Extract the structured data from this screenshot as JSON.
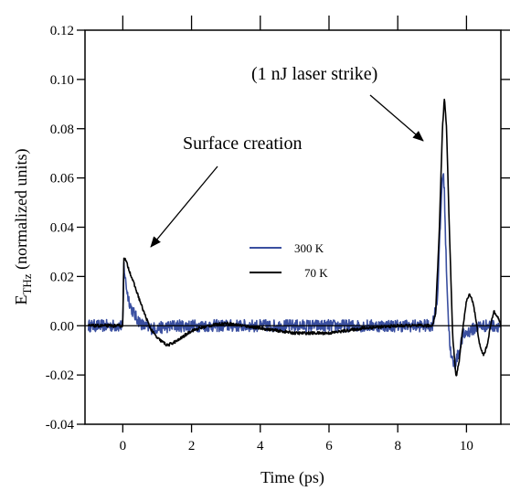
{
  "chart_data": {
    "type": "line",
    "title": "",
    "xlabel": "Time (ps)",
    "ylabel_main": "E",
    "ylabel_sub": "THz",
    "ylabel_rest": " (normalized units)",
    "xlim": [
      -1.1,
      11.0
    ],
    "ylim": [
      -0.04,
      0.12
    ],
    "x_ticks": [
      0,
      2,
      4,
      6,
      8,
      10
    ],
    "x_tick_labels": [
      "0",
      "2",
      "4",
      "6",
      "8",
      "10"
    ],
    "y_ticks": [
      -0.04,
      -0.02,
      0.0,
      0.02,
      0.04,
      0.06,
      0.08,
      0.1,
      0.12
    ],
    "y_tick_labels": [
      "-0.04",
      "-0.02",
      "0.00",
      "0.02",
      "0.04",
      "0.06",
      "0.08",
      "0.10",
      "0.12"
    ],
    "grid": false,
    "legend_position": "center",
    "series": [
      {
        "name": "300 K",
        "color": "#3a4fa0",
        "x": [
          -1.0,
          -0.5,
          0.0,
          0.03,
          0.08,
          0.15,
          0.25,
          0.4,
          0.6,
          0.8,
          1.0,
          1.5,
          2.0,
          3.0,
          4.0,
          5.0,
          6.0,
          7.0,
          8.0,
          9.0,
          9.15,
          9.25,
          9.3,
          9.35,
          9.4,
          9.48,
          9.55,
          9.65,
          9.75,
          9.9,
          10.1,
          10.4,
          10.7,
          11.0
        ],
        "y": [
          0.0,
          0.0,
          0.0,
          0.025,
          0.018,
          0.012,
          0.007,
          0.003,
          0.0,
          -0.001,
          -0.001,
          0.0,
          0.0,
          0.0,
          0.0,
          0.0,
          0.0,
          0.0,
          0.0,
          0.0,
          0.01,
          0.045,
          0.062,
          0.058,
          0.03,
          0.0,
          -0.013,
          -0.016,
          -0.012,
          -0.004,
          -0.002,
          0.0,
          0.0,
          0.0
        ],
        "noise": 0.0025
      },
      {
        "name": "70 K",
        "color": "#000000",
        "x": [
          -1.0,
          -0.5,
          0.0,
          0.03,
          0.1,
          0.2,
          0.3,
          0.4,
          0.5,
          0.6,
          0.8,
          1.0,
          1.3,
          1.6,
          2.0,
          2.5,
          3.0,
          3.5,
          4.0,
          5.0,
          6.0,
          7.0,
          8.0,
          8.8,
          9.0,
          9.1,
          9.2,
          9.3,
          9.36,
          9.42,
          9.5,
          9.6,
          9.7,
          9.8,
          9.9,
          10.0,
          10.1,
          10.2,
          10.3,
          10.4,
          10.5,
          10.6,
          10.7,
          10.8,
          10.9,
          11.0
        ],
        "y": [
          0.0,
          0.0,
          0.0,
          0.028,
          0.026,
          0.022,
          0.018,
          0.014,
          0.01,
          0.006,
          -0.001,
          -0.005,
          -0.008,
          -0.006,
          -0.002,
          0.0,
          0.001,
          0.0,
          -0.001,
          -0.003,
          -0.003,
          -0.001,
          0.0,
          0.0,
          0.0,
          0.005,
          0.035,
          0.08,
          0.093,
          0.08,
          0.04,
          -0.005,
          -0.021,
          -0.013,
          0.0,
          0.01,
          0.013,
          0.009,
          0.0,
          -0.009,
          -0.012,
          -0.008,
          0.0,
          0.006,
          0.004,
          0.0
        ],
        "noise": 0.0006
      }
    ],
    "annotations": [
      {
        "text": "Surface creation",
        "arrow_to": [
          0.15,
          0.03
        ]
      },
      {
        "text": "(1 nJ laser strike)",
        "arrow_to": [
          9.1,
          0.075
        ]
      }
    ]
  }
}
